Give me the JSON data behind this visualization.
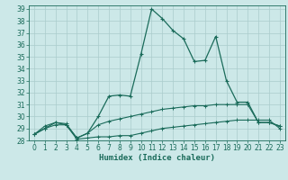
{
  "xlabel": "Humidex (Indice chaleur)",
  "xlim": [
    -0.5,
    23.5
  ],
  "ylim": [
    28,
    39.3
  ],
  "yticks": [
    28,
    29,
    30,
    31,
    32,
    33,
    34,
    35,
    36,
    37,
    38,
    39
  ],
  "xticks": [
    0,
    1,
    2,
    3,
    4,
    5,
    6,
    7,
    8,
    9,
    10,
    11,
    12,
    13,
    14,
    15,
    16,
    17,
    18,
    19,
    20,
    21,
    22,
    23
  ],
  "bg_color": "#cce8e8",
  "grid_color": "#aacccc",
  "line_color": "#1a6b5a",
  "line1_y": [
    28.5,
    29.0,
    29.3,
    29.3,
    28.1,
    28.2,
    28.3,
    28.3,
    28.4,
    28.4,
    28.6,
    28.8,
    29.0,
    29.1,
    29.2,
    29.3,
    29.4,
    29.5,
    29.6,
    29.7,
    29.7,
    29.7,
    29.7,
    29.0
  ],
  "line2_y": [
    28.5,
    29.2,
    29.5,
    29.4,
    28.2,
    28.6,
    29.3,
    29.6,
    29.8,
    30.0,
    30.2,
    30.4,
    30.6,
    30.7,
    30.8,
    30.9,
    30.9,
    31.0,
    31.0,
    31.0,
    31.0,
    29.5,
    29.5,
    29.2
  ],
  "line3_y": [
    28.5,
    29.0,
    29.5,
    29.3,
    28.2,
    28.6,
    30.0,
    31.7,
    31.8,
    31.7,
    35.2,
    39.0,
    38.2,
    37.2,
    36.5,
    34.6,
    34.7,
    36.7,
    33.0,
    31.2,
    31.2,
    29.5,
    29.5,
    29.2
  ],
  "xlabel_fontsize": 6.5,
  "tick_fontsize": 5.5
}
